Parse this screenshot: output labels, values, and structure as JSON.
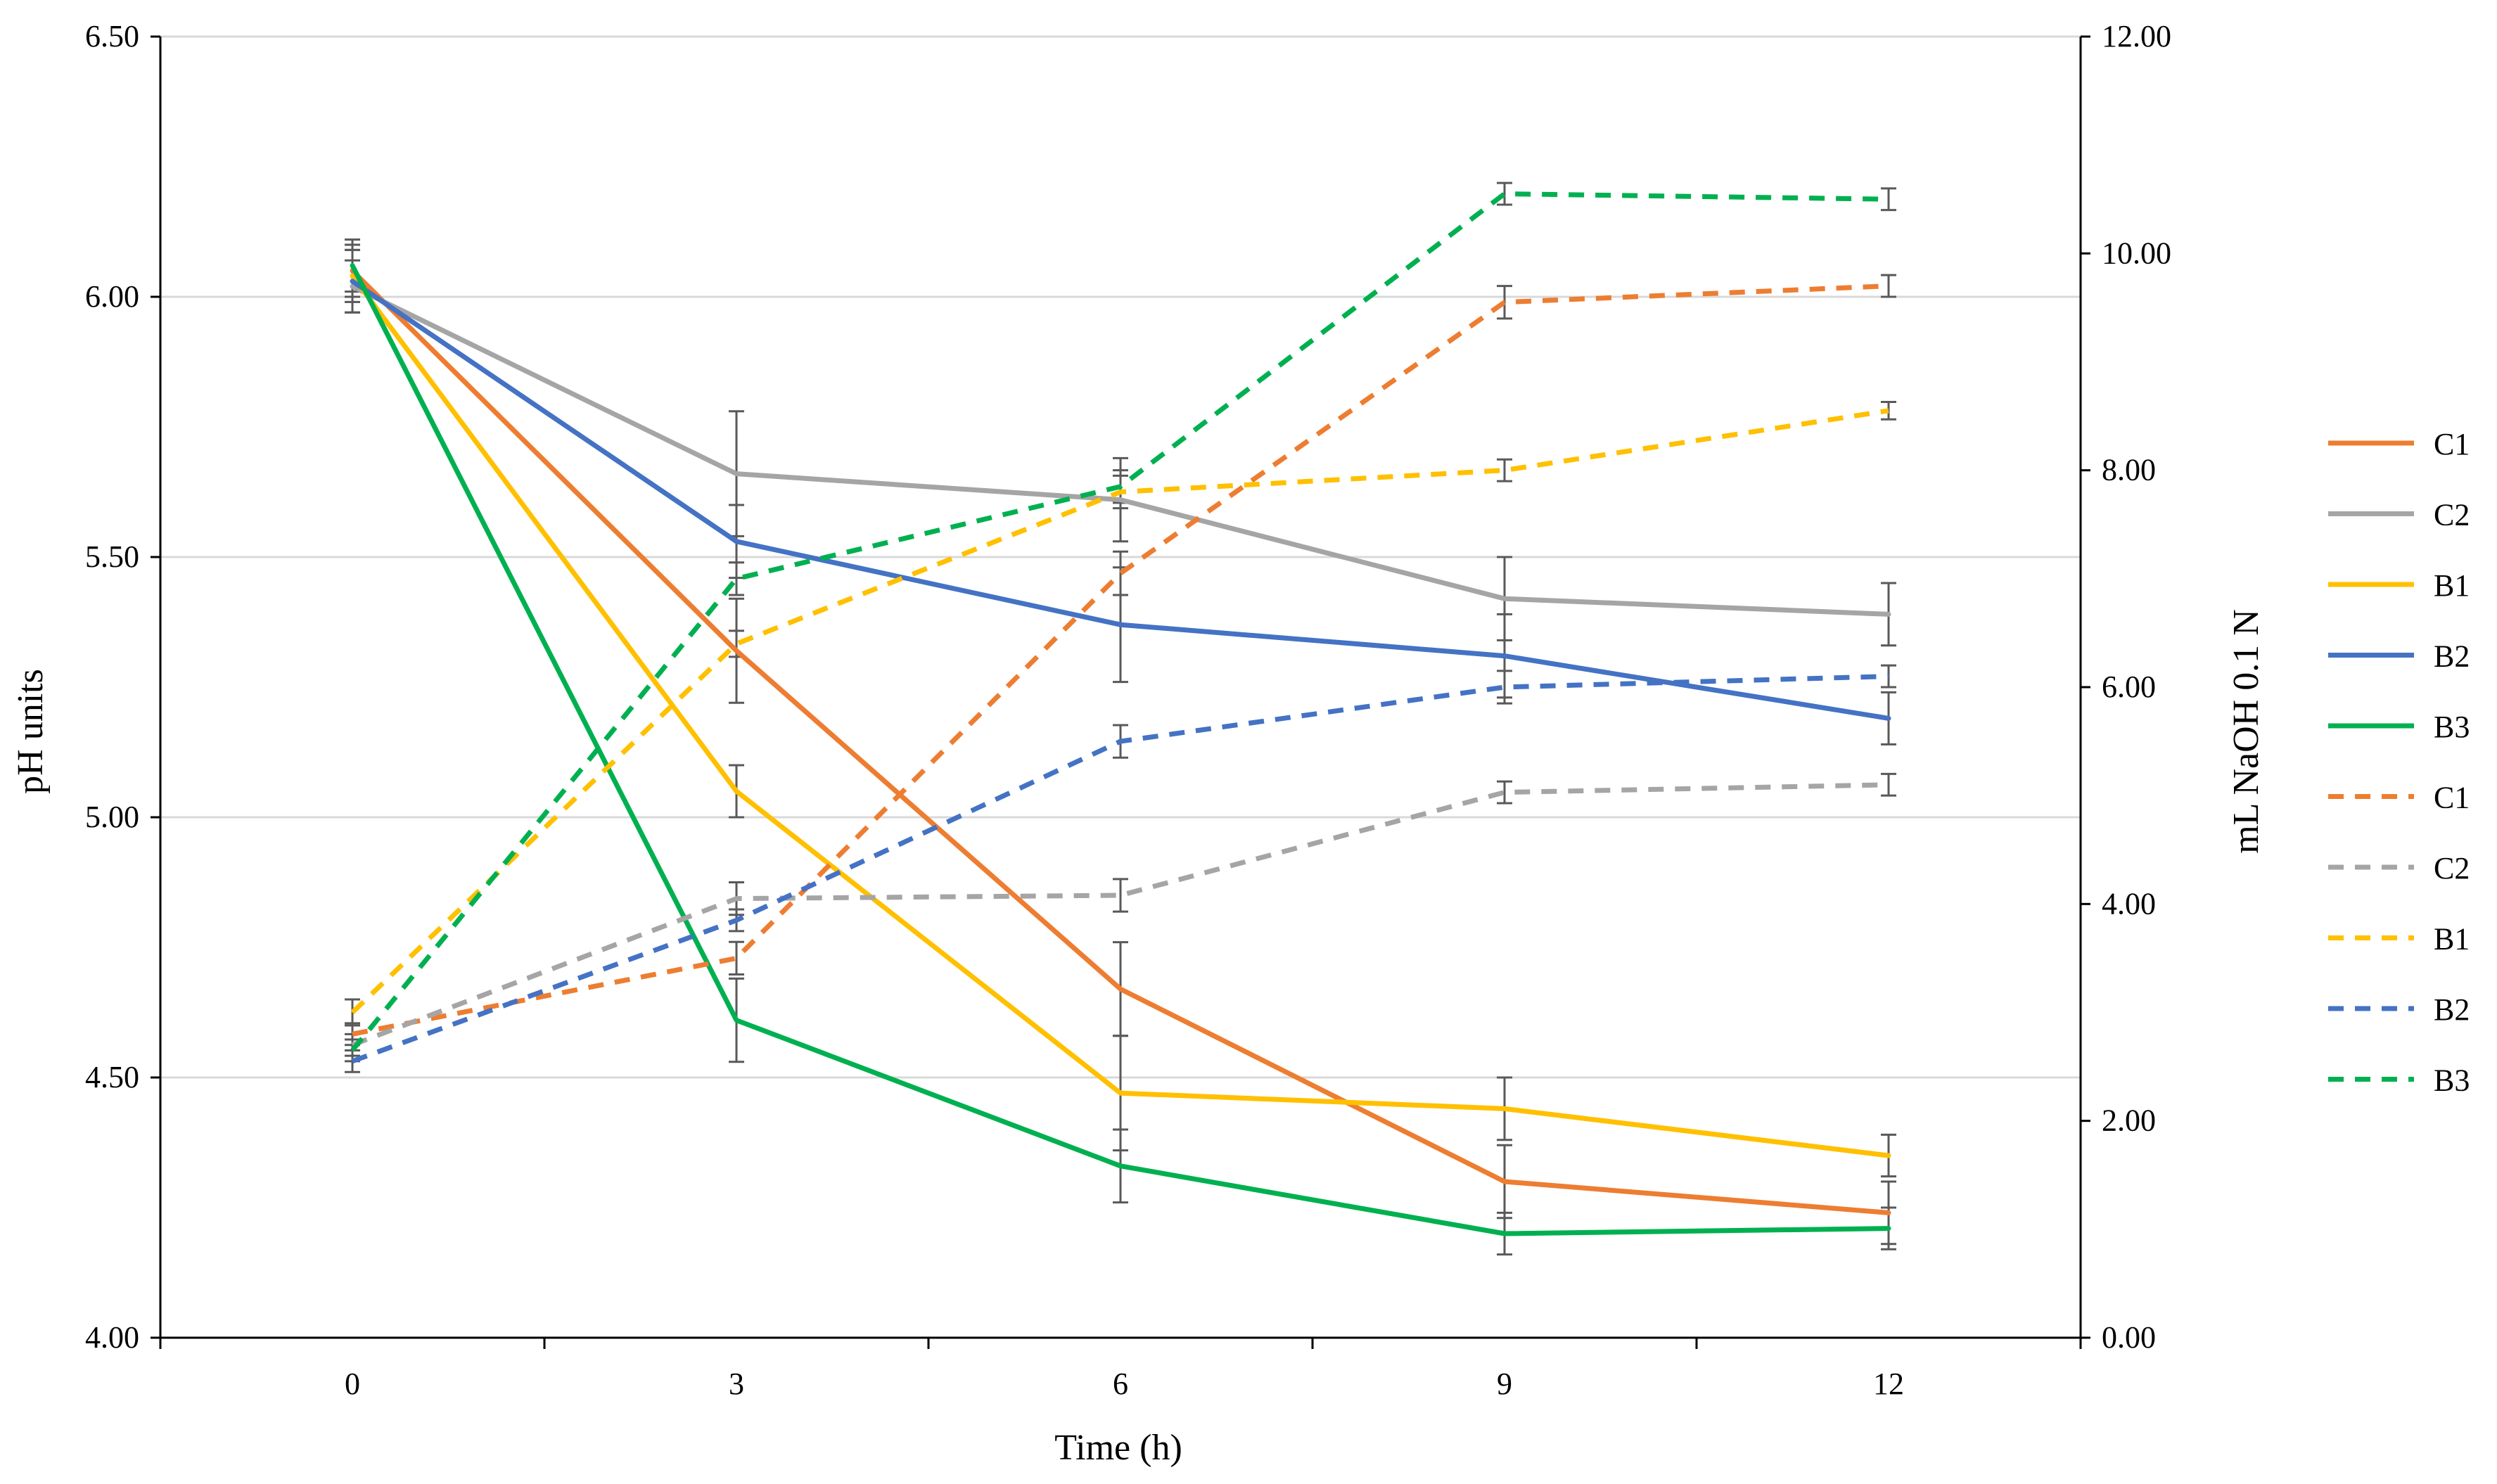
{
  "chart_data": {
    "type": "line",
    "x": [
      0,
      3,
      6,
      9,
      12
    ],
    "xticks": [
      "0",
      "3",
      "6",
      "9",
      "12"
    ],
    "xlabel": "Time (h)",
    "ylabel": "pH units",
    "y2label": "mL NaOH 0.1 N",
    "ylim": [
      4.0,
      6.5
    ],
    "y2lim": [
      0,
      12
    ],
    "yticks": [
      "4.00",
      "4.50",
      "5.00",
      "5.50",
      "6.00",
      "6.50"
    ],
    "y2ticks": [
      "0.00",
      "2.00",
      "4.00",
      "6.00",
      "8.00",
      "10.00",
      "12.00"
    ],
    "grid": true,
    "legend_position": "right",
    "series": [
      {
        "name": "C1",
        "axis": "left",
        "style": "solid",
        "color": "#ED7D31",
        "values": [
          6.05,
          5.32,
          4.67,
          4.3,
          4.24
        ],
        "errors": [
          0.05,
          0.1,
          0.09,
          0.07,
          0.06
        ]
      },
      {
        "name": "C2",
        "axis": "left",
        "style": "solid",
        "color": "#A5A5A5",
        "values": [
          6.02,
          5.66,
          5.61,
          5.42,
          5.39
        ],
        "errors": [
          0.05,
          0.12,
          0.08,
          0.08,
          0.06
        ]
      },
      {
        "name": "B1",
        "axis": "left",
        "style": "solid",
        "color": "#FFC000",
        "values": [
          6.04,
          5.05,
          4.47,
          4.44,
          4.35
        ],
        "errors": [
          0.05,
          0.05,
          0.11,
          0.06,
          0.04
        ]
      },
      {
        "name": "B2",
        "axis": "left",
        "style": "solid",
        "color": "#4472C4",
        "values": [
          6.03,
          5.53,
          5.37,
          5.31,
          5.19
        ],
        "errors": [
          0.06,
          0.07,
          0.11,
          0.08,
          0.05
        ]
      },
      {
        "name": "B3",
        "axis": "left",
        "style": "solid",
        "color": "#00B050",
        "values": [
          6.06,
          4.61,
          4.33,
          4.2,
          4.21
        ],
        "errors": [
          0.05,
          0.08,
          0.07,
          0.04,
          0.04
        ]
      },
      {
        "name": "C1",
        "axis": "right",
        "style": "dashed",
        "color": "#ED7D31",
        "values": [
          2.8,
          3.5,
          7.05,
          9.55,
          9.7
        ],
        "errors": [
          0.1,
          0.15,
          0.2,
          0.15,
          0.1
        ]
      },
      {
        "name": "C2",
        "axis": "right",
        "style": "dashed",
        "color": "#A5A5A5",
        "values": [
          2.7,
          4.05,
          4.08,
          5.03,
          5.1
        ],
        "errors": [
          0.1,
          0.15,
          0.15,
          0.1,
          0.1
        ]
      },
      {
        "name": "B1",
        "axis": "right",
        "style": "dashed",
        "color": "#FFC000",
        "values": [
          3.0,
          6.4,
          7.8,
          8.0,
          8.55
        ],
        "errors": [
          0.12,
          0.12,
          0.15,
          0.1,
          0.08
        ]
      },
      {
        "name": "B2",
        "axis": "right",
        "style": "dashed",
        "color": "#4472C4",
        "values": [
          2.55,
          3.85,
          5.5,
          6.0,
          6.1
        ],
        "errors": [
          0.1,
          0.1,
          0.15,
          0.15,
          0.1
        ]
      },
      {
        "name": "B3",
        "axis": "right",
        "style": "dashed",
        "color": "#00B050",
        "values": [
          2.65,
          7.0,
          7.85,
          10.55,
          10.5
        ],
        "errors": [
          0.1,
          0.15,
          0.15,
          0.1,
          0.1
        ]
      }
    ]
  }
}
